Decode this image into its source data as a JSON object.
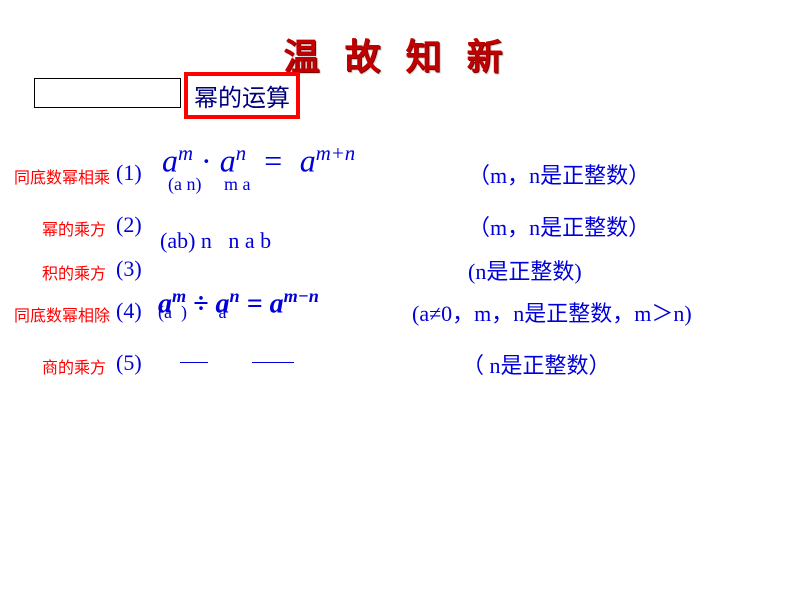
{
  "title": "温 故 知 新",
  "section_label": "幂的运算",
  "colors": {
    "title": "#c00000",
    "title_shadow": "#7f0000",
    "section_border": "#ff0000",
    "row_label": "#ff0000",
    "math_text": "#0000d8",
    "box_border": "#000000",
    "background": "#ffffff"
  },
  "rows": [
    {
      "label": "同底数幂相乘",
      "num": "(1)",
      "formula_html": "a<sup>m</sup> <span class='dot'>·</span> a<sup>n</sup> &nbsp;=&nbsp; a<sup>m+n</sup>",
      "overlay_html": "(a&nbsp;n)&nbsp;&nbsp;&nbsp;&nbsp;&nbsp;m a",
      "condition": "（m，n是正整数）"
    },
    {
      "label": "幂的乘方",
      "num": "(2)",
      "formula_html": "",
      "overlay_html": "(ab)&nbsp;n&nbsp;&nbsp;&nbsp;n&nbsp;a&nbsp;b",
      "condition": "（m，n是正整数）"
    },
    {
      "label": "积的乘方",
      "num": "(3)",
      "formula_html": "",
      "overlay_html": "",
      "condition": "(n是正整数)"
    },
    {
      "label": "同底数幂相除",
      "num": "(4)",
      "formula_html": "a<sup>m</sup> ÷ a<sup>n</sup> = a<sup>m−n</sup>",
      "overlay_html": "(a&nbsp;&nbsp;)&nbsp;&nbsp;&nbsp;&nbsp;&nbsp;&nbsp;&nbsp;a",
      "condition": "(a≠0，m，n是正整数，m＞n)"
    },
    {
      "label": "商的乘方",
      "num": "(5)",
      "formula_html": "",
      "overlay_html": "",
      "condition": "（ n是正整数）"
    }
  ],
  "font_sizes": {
    "title": 36,
    "section": 24,
    "row_label": 16,
    "row_num": 22,
    "formula_large": 30,
    "formula_small": 20,
    "condition": 22
  }
}
